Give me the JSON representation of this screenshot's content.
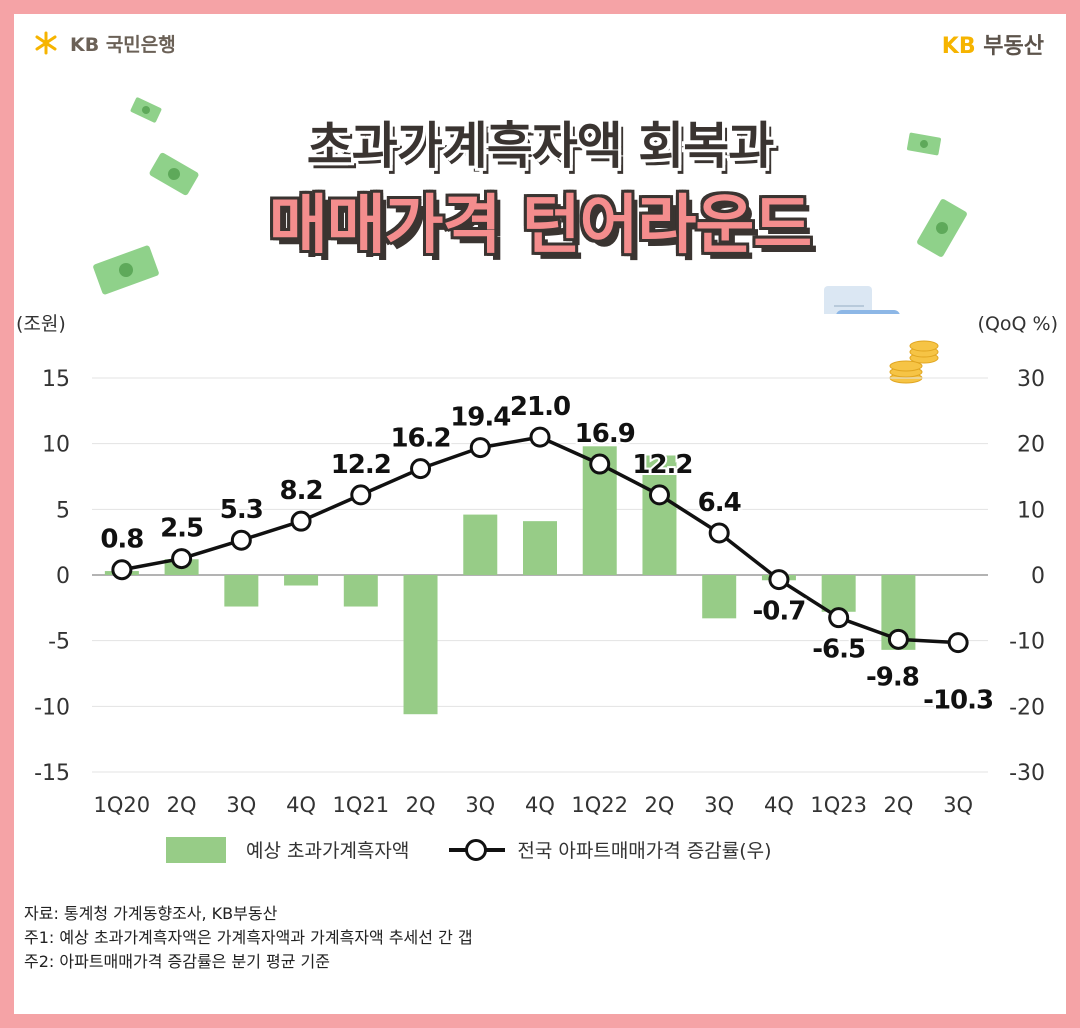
{
  "header": {
    "left_logo_text": "KB 국민은행",
    "right_logo_kb": "KB",
    "right_logo_text": "부동산"
  },
  "title": {
    "line1": "초과가계흑자액 회복과",
    "line2": "매매가격 턴어라운드"
  },
  "colors": {
    "background_border": "#f5a3a6",
    "bar": "#97cc87",
    "line": "#111111",
    "title_accent": "#f48d8d",
    "brand_yellow": "#f6b400"
  },
  "icons": [
    "kb-star-icon",
    "money-bill-icon",
    "calculator-icon",
    "coin-stack-icon",
    "receipt-icon"
  ],
  "chart_data": {
    "type": "bar",
    "categories": [
      "1Q20",
      "2Q",
      "3Q",
      "4Q",
      "1Q21",
      "2Q",
      "3Q",
      "4Q",
      "1Q22",
      "2Q",
      "3Q",
      "4Q",
      "1Q23",
      "2Q",
      "3Q"
    ],
    "series": [
      {
        "name": "예상 초과가계흑자액",
        "type": "bar",
        "axis": "left",
        "values": [
          0.3,
          1.2,
          -2.4,
          -0.8,
          -2.4,
          -10.6,
          4.6,
          4.1,
          9.8,
          9.1,
          -3.3,
          -0.4,
          -2.8,
          -5.7,
          0
        ]
      },
      {
        "name": "전국 아파트매매가격 증감률(우)",
        "type": "line",
        "axis": "right",
        "values": [
          0.8,
          2.5,
          5.3,
          8.2,
          12.2,
          16.2,
          19.4,
          21.0,
          16.9,
          12.2,
          6.4,
          -0.7,
          -6.5,
          -9.8,
          -10.3
        ],
        "labels": [
          "0.8",
          "2.5",
          "5.3",
          "8.2",
          "12.2",
          "16.2",
          "19.4",
          "21.0",
          "16.9",
          "12.2",
          "6.4",
          "-0.7",
          "-6.5",
          "-9.8",
          "-10.3"
        ]
      }
    ],
    "y_left": {
      "unit_label": "(조원)",
      "range": [
        -15,
        15
      ],
      "ticks": [
        15,
        10,
        5,
        0,
        -5,
        -10,
        -15
      ],
      "tick_labels": [
        "15",
        "10",
        "5",
        "0",
        "-5",
        "-10",
        "-15"
      ]
    },
    "y_right": {
      "unit_label": "(QoQ %)",
      "range": [
        -30,
        30
      ],
      "ticks": [
        30,
        20,
        10,
        0,
        -10,
        -20,
        -30
      ],
      "tick_labels": [
        "30",
        "20",
        "10",
        "0",
        "-10",
        "-20",
        "-30"
      ]
    },
    "grid": true,
    "legend_position": "bottom"
  },
  "legend": {
    "bar_label": "예상 초과가계흑자액",
    "line_label": "전국 아파트매매가격 증감률(우)"
  },
  "notes": [
    "자료: 통계청 가계동향조사, KB부동산",
    "주1: 예상 초과가계흑자액은 가계흑자액과 가계흑자액 추세선 간 갭",
    "주2: 아파트매매가격 증감률은 분기 평균 기준"
  ]
}
